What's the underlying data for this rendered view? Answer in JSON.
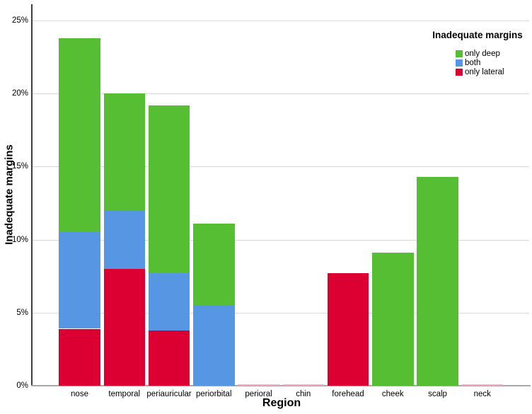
{
  "chart_data": {
    "type": "bar",
    "stacked": true,
    "title": "",
    "xlabel": "Region",
    "ylabel": "Inadequate margins",
    "categories": [
      "nose",
      "temporal",
      "periauricular",
      "periorbital",
      "perioral",
      "chin",
      "forehead",
      "cheek",
      "scalp",
      "neck"
    ],
    "series": [
      {
        "name": "only lateral",
        "color": "#DC0032",
        "values": [
          3.9,
          8.0,
          3.8,
          0,
          0.05,
          0.05,
          7.7,
          0,
          0,
          0.05
        ]
      },
      {
        "name": "both",
        "color": "#5796E3",
        "values": [
          6.6,
          4.0,
          3.9,
          5.5,
          0,
          0,
          0,
          0,
          0,
          0
        ]
      },
      {
        "name": "only deep",
        "color": "#56BE32",
        "values": [
          13.3,
          8.0,
          11.5,
          5.6,
          0,
          0,
          0,
          9.1,
          14.3,
          0
        ]
      }
    ],
    "stack_totals": [
      23.8,
      20.0,
      19.2,
      11.1,
      0.05,
      0.05,
      7.7,
      9.1,
      14.3,
      0.05
    ],
    "y_ticks": [
      "0%",
      "5%",
      "10%",
      "15%",
      "20%",
      "25%"
    ],
    "y_tick_values": [
      0,
      5,
      10,
      15,
      20,
      25
    ],
    "ylim": [
      0,
      25
    ],
    "grid": "horizontal",
    "legend_title": "Inadequate margins",
    "legend_order": [
      "only deep",
      "both",
      "only lateral"
    ],
    "legend_position": "top-right-inside",
    "near_zero_color": "#F5ADC0",
    "colors": {
      "only_deep": "#56BE32",
      "both": "#5796E3",
      "only_lateral": "#DC0032"
    }
  }
}
